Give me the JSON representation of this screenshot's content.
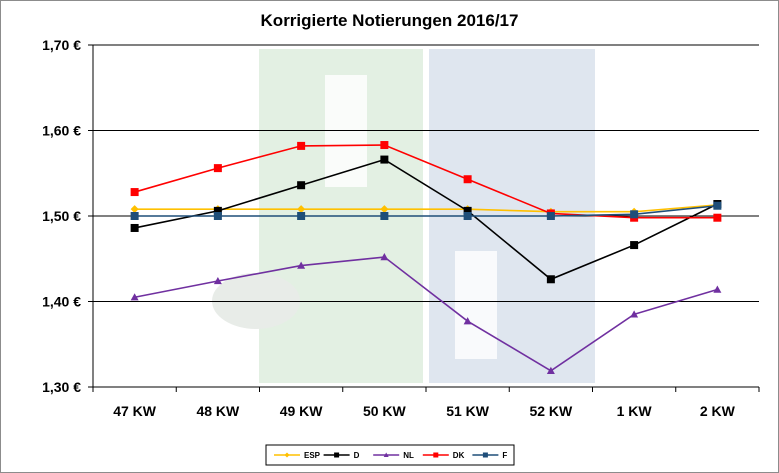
{
  "chart_data": {
    "type": "line",
    "title": "Korrigierte Notierungen 2016/17",
    "xlabel": "",
    "ylabel": "",
    "categories": [
      "47 KW",
      "48 KW",
      "49 KW",
      "50 KW",
      "51 KW",
      "52 KW",
      "1 KW",
      "2 KW"
    ],
    "ylim": [
      1.3,
      1.7
    ],
    "yticks": [
      1.3,
      1.4,
      1.5,
      1.6,
      1.7
    ],
    "ytick_labels": [
      "1,30 €",
      "1,40 €",
      "1,50 €",
      "1,60 €",
      "1,70 €"
    ],
    "grid": true,
    "legend_position": "bottom",
    "series": [
      {
        "name": "ESP",
        "color": "#FFC000",
        "marker": "diamond",
        "values": [
          1.508,
          1.508,
          1.508,
          1.508,
          1.508,
          1.505,
          1.505,
          1.513
        ]
      },
      {
        "name": "D",
        "color": "#000000",
        "marker": "square",
        "values": [
          1.486,
          1.506,
          1.536,
          1.566,
          1.506,
          1.426,
          1.466,
          1.514
        ]
      },
      {
        "name": "NL",
        "color": "#7030A0",
        "marker": "triangle",
        "values": [
          1.405,
          1.424,
          1.442,
          1.452,
          1.377,
          1.319,
          1.385,
          1.414
        ]
      },
      {
        "name": "DK",
        "color": "#FF0000",
        "marker": "square",
        "values": [
          1.528,
          1.556,
          1.582,
          1.583,
          1.543,
          1.503,
          1.498,
          1.498
        ]
      },
      {
        "name": "F",
        "color": "#1F4E79",
        "marker": "square",
        "values": [
          1.5,
          1.5,
          1.5,
          1.5,
          1.5,
          1.5,
          1.502,
          1.512
        ]
      }
    ]
  },
  "watermark": {
    "colors": [
      "#e3f0e3",
      "#dfe6ef"
    ]
  }
}
